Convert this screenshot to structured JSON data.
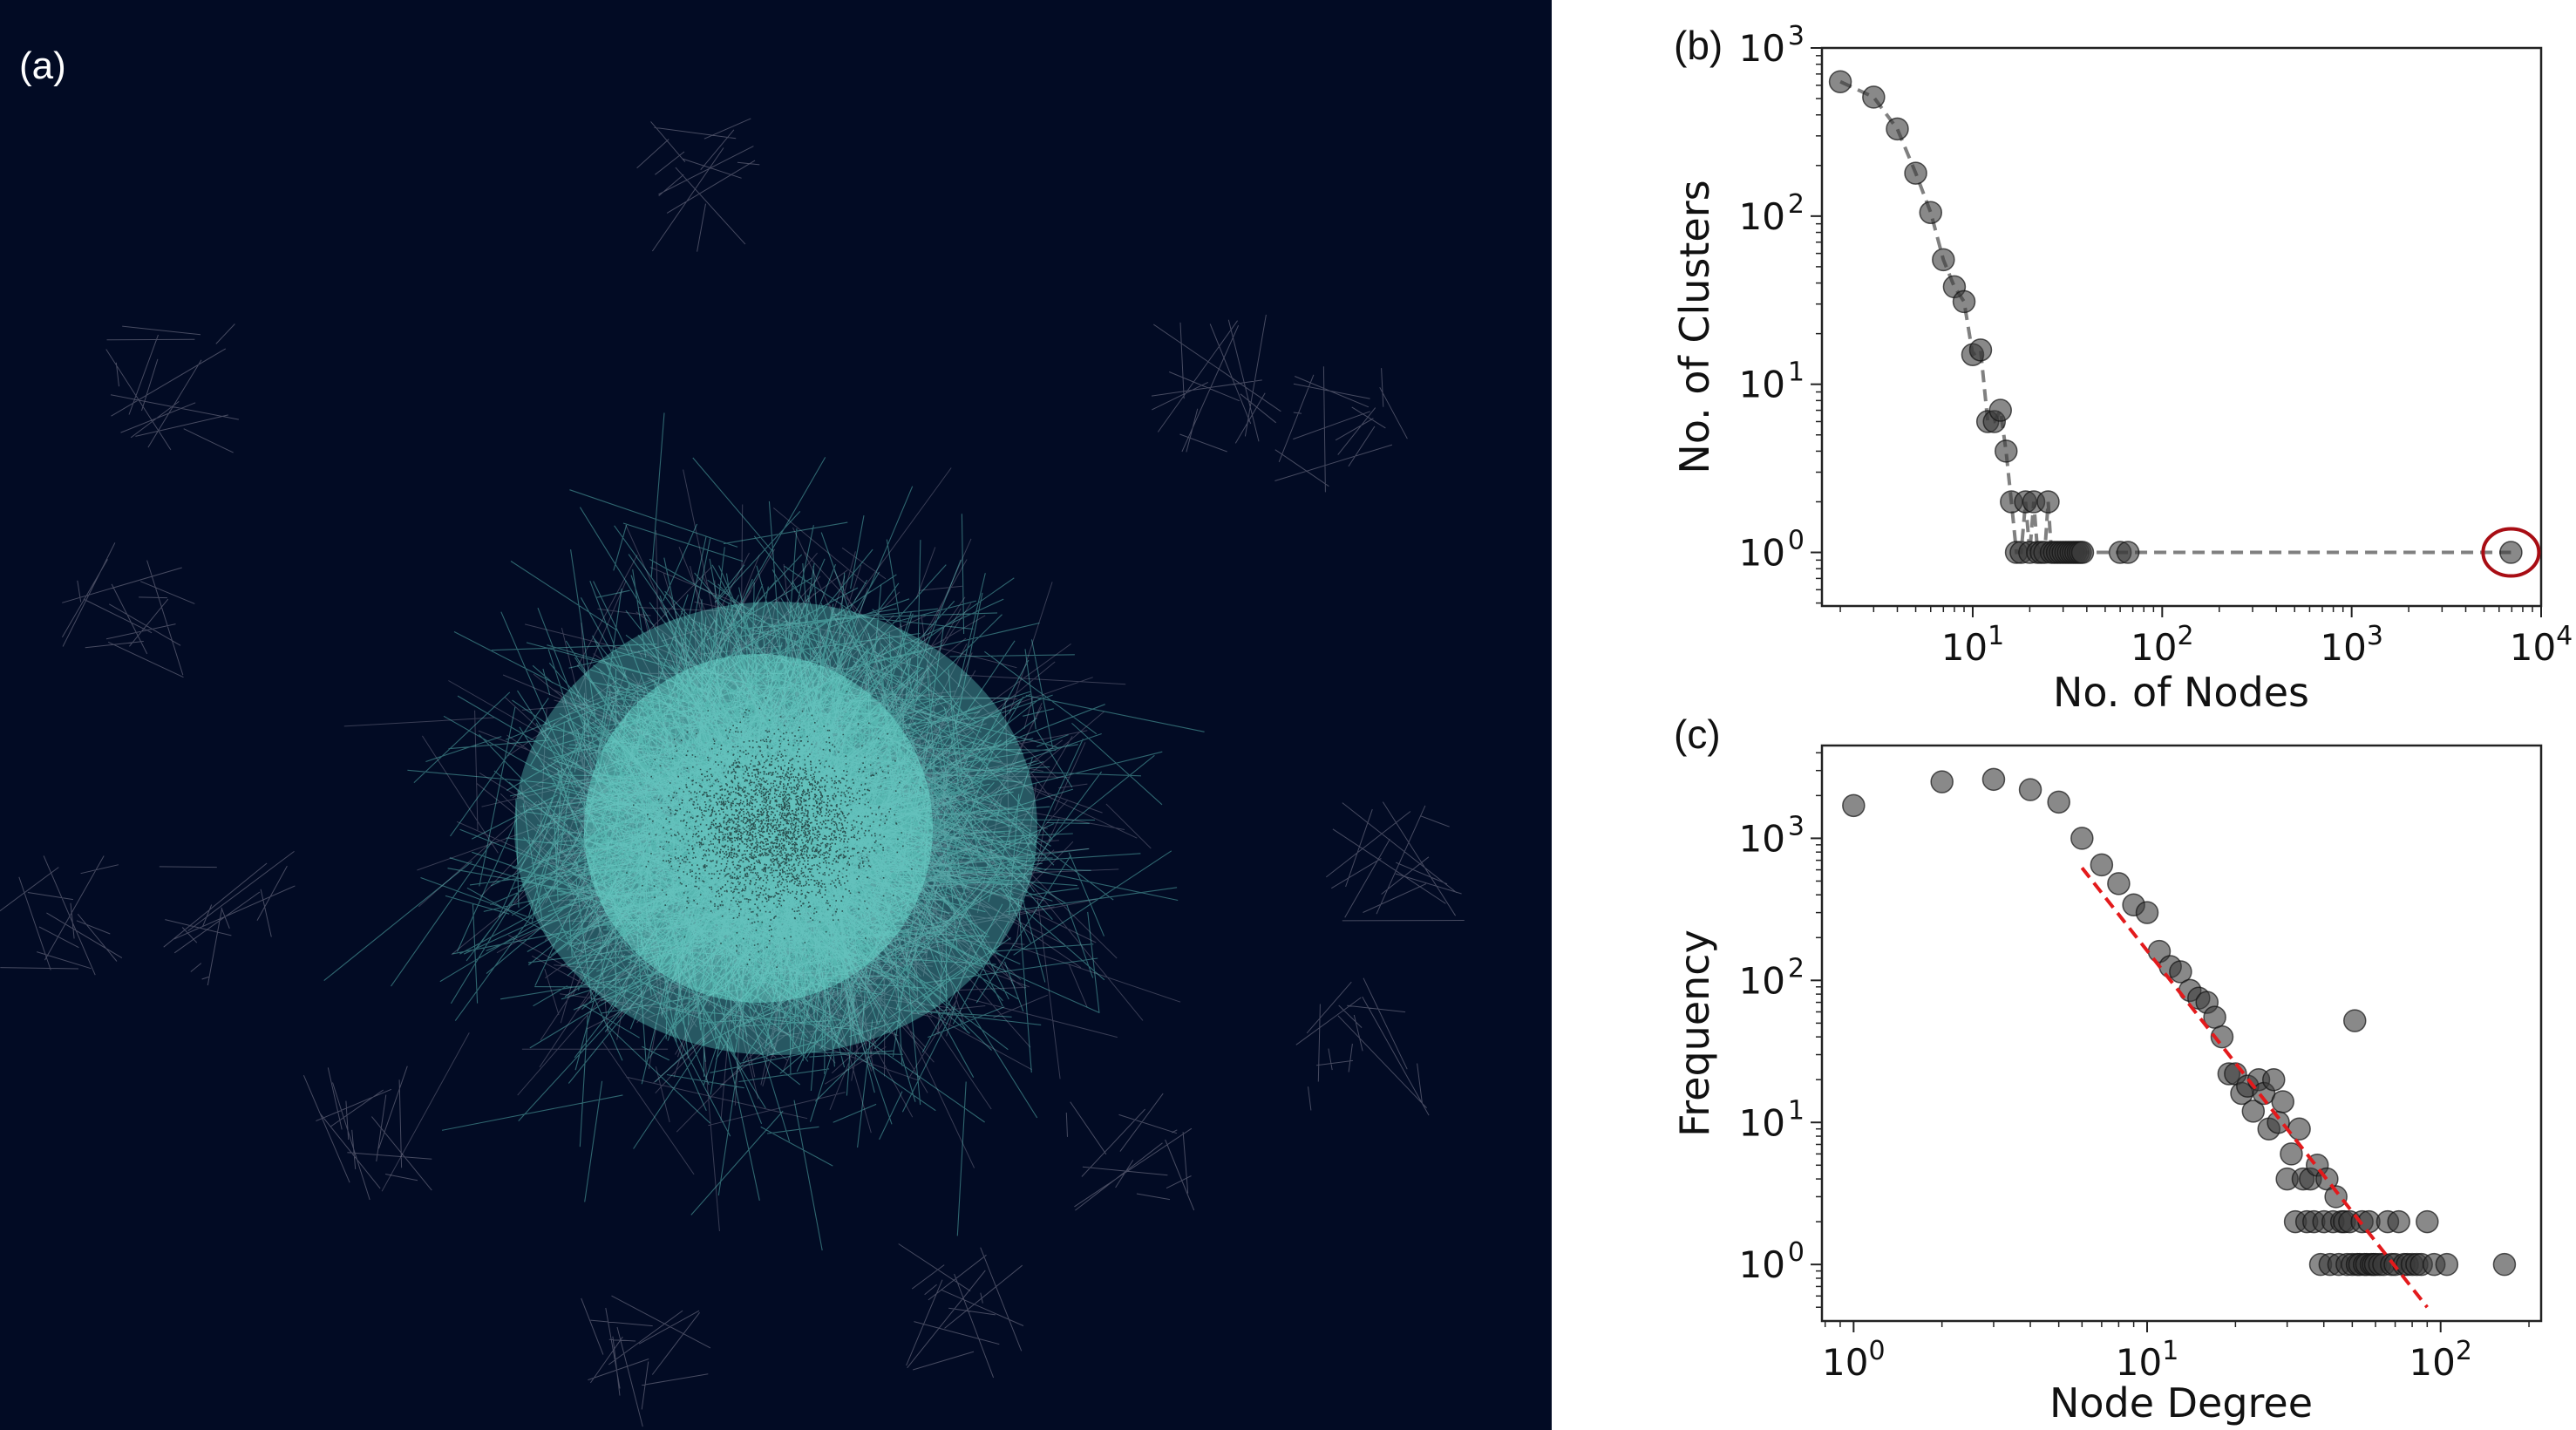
{
  "panel_labels": {
    "a": "(a)",
    "b": "(b)",
    "c": "(c)"
  },
  "network": {
    "background": "#020b24",
    "edge_colors": [
      "#6ee5d8",
      "#c9c3d3"
    ],
    "node_color": "#1b3536"
  },
  "colors": {
    "marker": "#3a3a3a",
    "dashed_line": "#808080",
    "fit_line": "#e31a1c",
    "highlight_circle": "#a80d14"
  },
  "chart_data": [
    {
      "type": "scatter",
      "xlabel": "No. of Nodes",
      "ylabel": "No. of Clusters",
      "xscale": "log",
      "yscale": "log",
      "xlim": [
        1.6,
        10000
      ],
      "ylim": [
        0.48,
        1000
      ],
      "xticks": [
        {
          "value": 10,
          "base": "10",
          "exp": "1"
        },
        {
          "value": 100,
          "base": "10",
          "exp": "2"
        },
        {
          "value": 1000,
          "base": "10",
          "exp": "3"
        },
        {
          "value": 10000,
          "base": "10",
          "exp": "4"
        }
      ],
      "yticks": [
        {
          "value": 1,
          "base": "10",
          "exp": "0"
        },
        {
          "value": 10,
          "base": "10",
          "exp": "1"
        },
        {
          "value": 100,
          "base": "10",
          "exp": "2"
        },
        {
          "value": 1000,
          "base": "10",
          "exp": "3"
        }
      ],
      "line_style": "dashed",
      "x": [
        2,
        3,
        4,
        5,
        6,
        7,
        8,
        9,
        10,
        11,
        12,
        13,
        14,
        15,
        16,
        17,
        18,
        19,
        20,
        21,
        22,
        23,
        24,
        25,
        26,
        27,
        28,
        29,
        30,
        31,
        32,
        33,
        34,
        35,
        36,
        37,
        38,
        60,
        66,
        6930
      ],
      "y": [
        630,
        510,
        330,
        180,
        105,
        55,
        38,
        31,
        15,
        16,
        6,
        6,
        7,
        4,
        2,
        1,
        1,
        2,
        1,
        2,
        1,
        1,
        1,
        2,
        1,
        1,
        1,
        1,
        1,
        1,
        1,
        1,
        1,
        1,
        1,
        1,
        1,
        1,
        1,
        1
      ],
      "highlight": {
        "x": 6930,
        "y": 1
      }
    },
    {
      "type": "scatter",
      "xlabel": "Node Degree",
      "ylabel": "Frequency",
      "xscale": "log",
      "yscale": "log",
      "xlim": [
        0.78,
        220
      ],
      "ylim": [
        0.4,
        4500
      ],
      "xticks": [
        {
          "value": 1,
          "base": "10",
          "exp": "0"
        },
        {
          "value": 10,
          "base": "10",
          "exp": "1"
        },
        {
          "value": 100,
          "base": "10",
          "exp": "2"
        }
      ],
      "yticks": [
        {
          "value": 1,
          "base": "10",
          "exp": "0"
        },
        {
          "value": 10,
          "base": "10",
          "exp": "1"
        },
        {
          "value": 100,
          "base": "10",
          "exp": "2"
        },
        {
          "value": 1000,
          "base": "10",
          "exp": "3"
        }
      ],
      "x": [
        1,
        2,
        3,
        4,
        5,
        6,
        7,
        8,
        9,
        10,
        11,
        12,
        13,
        14,
        15,
        16,
        17,
        18,
        19,
        20,
        21,
        22,
        23,
        24,
        25,
        26,
        27,
        28,
        29,
        30,
        31,
        32,
        33,
        34,
        35,
        36,
        37,
        38,
        39,
        40,
        41,
        42,
        43,
        44,
        45,
        46,
        47,
        48,
        49,
        50,
        51,
        52,
        53,
        54,
        55,
        56,
        57,
        58,
        59,
        60,
        62,
        64,
        66,
        68,
        70,
        72,
        75,
        77,
        80,
        83,
        86,
        90,
        95,
        105,
        165
      ],
      "y": [
        1700,
        2500,
        2600,
        2200,
        1800,
        1000,
        650,
        480,
        340,
        300,
        160,
        125,
        115,
        85,
        75,
        70,
        55,
        40,
        22,
        22,
        16,
        18,
        12,
        20,
        16,
        9,
        20,
        10,
        14,
        4,
        6,
        2,
        9,
        4,
        2,
        4,
        2,
        5,
        1,
        2,
        4,
        1,
        2,
        3,
        1,
        2,
        2,
        1,
        2,
        1,
        52,
        1,
        1,
        2,
        1,
        1,
        2,
        1,
        1,
        1,
        1,
        1,
        2,
        1,
        1,
        2,
        1,
        1,
        1,
        1,
        1,
        2,
        1,
        1,
        1
      ],
      "fit_line": {
        "style": "dashed",
        "x": [
          6,
          90
        ],
        "y": [
          620,
          0.5
        ]
      }
    }
  ]
}
